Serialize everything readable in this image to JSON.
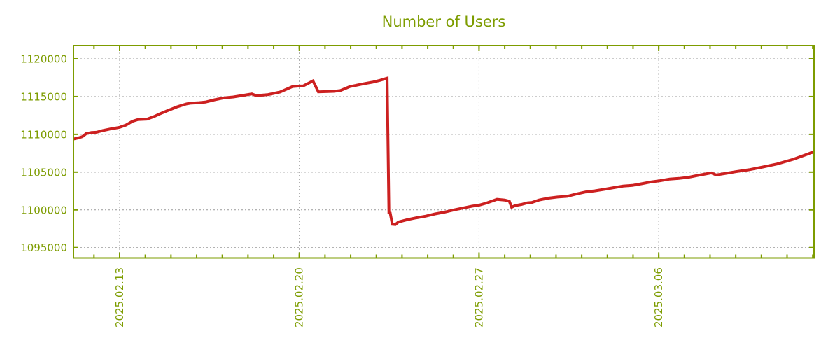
{
  "colors": {
    "accent": "#7d9c00",
    "series": "#cc2020",
    "grid": "#999999",
    "background": "#ffffff"
  },
  "chart_data": {
    "type": "line",
    "title": "Number of Users",
    "xlabel": "",
    "ylabel": "",
    "grid": true,
    "legend": "none",
    "x_unit": "days_since_2025.02.13",
    "xlim": [
      -1.8,
      27.05
    ],
    "ylim": [
      1093628,
      1121761
    ],
    "y_ticks": [
      {
        "value": 1120000,
        "label": "1120000"
      },
      {
        "value": 1115000,
        "label": "1115000"
      },
      {
        "value": 1110000,
        "label": "1110000"
      },
      {
        "value": 1105000,
        "label": "1105000"
      },
      {
        "value": 1100000,
        "label": "1100000"
      },
      {
        "value": 1095000,
        "label": "1095000"
      }
    ],
    "x_major_ticks": [
      {
        "day": 0,
        "label": "2025.02.13"
      },
      {
        "day": 7,
        "label": "2025.02.20"
      },
      {
        "day": 14,
        "label": "2025.02.27"
      },
      {
        "day": 21,
        "label": "2025.03.06"
      }
    ],
    "x_minor_ticks": {
      "first_day": -1,
      "last_day": 27,
      "step_days": 1
    },
    "series": [
      {
        "name": "Number of Users",
        "points": [
          [
            -1.8,
            1109380
          ],
          [
            -1.62,
            1109520
          ],
          [
            -1.45,
            1109700
          ],
          [
            -1.3,
            1110100
          ],
          [
            -1.1,
            1110240
          ],
          [
            -0.9,
            1110280
          ],
          [
            -0.66,
            1110500
          ],
          [
            -0.35,
            1110720
          ],
          [
            0.0,
            1110930
          ],
          [
            0.25,
            1111240
          ],
          [
            0.5,
            1111730
          ],
          [
            0.7,
            1111950
          ],
          [
            1.06,
            1112010
          ],
          [
            1.34,
            1112360
          ],
          [
            1.55,
            1112700
          ],
          [
            1.84,
            1113100
          ],
          [
            2.24,
            1113650
          ],
          [
            2.6,
            1114030
          ],
          [
            2.75,
            1114120
          ],
          [
            3.1,
            1114200
          ],
          [
            3.34,
            1114270
          ],
          [
            3.7,
            1114580
          ],
          [
            4.06,
            1114830
          ],
          [
            4.43,
            1114950
          ],
          [
            4.79,
            1115140
          ],
          [
            5.15,
            1115350
          ],
          [
            5.32,
            1115120
          ],
          [
            5.79,
            1115260
          ],
          [
            6.25,
            1115600
          ],
          [
            6.74,
            1116330
          ],
          [
            7.0,
            1116390
          ],
          [
            7.15,
            1116400
          ],
          [
            7.53,
            1117070
          ],
          [
            7.74,
            1115620
          ],
          [
            8.34,
            1115690
          ],
          [
            8.6,
            1115800
          ],
          [
            8.97,
            1116320
          ],
          [
            9.52,
            1116700
          ],
          [
            9.85,
            1116900
          ],
          [
            10.15,
            1117150
          ],
          [
            10.42,
            1117430
          ],
          [
            10.49,
            1099650
          ],
          [
            10.54,
            1099600
          ],
          [
            10.62,
            1098100
          ],
          [
            10.74,
            1098060
          ],
          [
            10.86,
            1098390
          ],
          [
            11.2,
            1098700
          ],
          [
            11.56,
            1098950
          ],
          [
            11.93,
            1099170
          ],
          [
            12.29,
            1099470
          ],
          [
            12.65,
            1099690
          ],
          [
            13.02,
            1100000
          ],
          [
            13.38,
            1100250
          ],
          [
            13.74,
            1100500
          ],
          [
            14.0,
            1100620
          ],
          [
            14.29,
            1100900
          ],
          [
            14.7,
            1101400
          ],
          [
            15.0,
            1101300
          ],
          [
            15.18,
            1101150
          ],
          [
            15.27,
            1100350
          ],
          [
            15.4,
            1100560
          ],
          [
            15.65,
            1100720
          ],
          [
            15.88,
            1100930
          ],
          [
            16.06,
            1100990
          ],
          [
            16.34,
            1101300
          ],
          [
            16.7,
            1101550
          ],
          [
            17.06,
            1101700
          ],
          [
            17.43,
            1101790
          ],
          [
            17.79,
            1102100
          ],
          [
            18.16,
            1102380
          ],
          [
            18.52,
            1102530
          ],
          [
            18.88,
            1102720
          ],
          [
            19.25,
            1102940
          ],
          [
            19.61,
            1103150
          ],
          [
            19.97,
            1103240
          ],
          [
            20.34,
            1103460
          ],
          [
            20.7,
            1103700
          ],
          [
            21.05,
            1103860
          ],
          [
            21.43,
            1104080
          ],
          [
            21.79,
            1104170
          ],
          [
            22.16,
            1104320
          ],
          [
            22.52,
            1104570
          ],
          [
            22.87,
            1104790
          ],
          [
            23.05,
            1104900
          ],
          [
            23.24,
            1104630
          ],
          [
            23.65,
            1104850
          ],
          [
            24.0,
            1105060
          ],
          [
            24.52,
            1105320
          ],
          [
            25.06,
            1105680
          ],
          [
            25.61,
            1106080
          ],
          [
            26.24,
            1106700
          ],
          [
            26.75,
            1107320
          ],
          [
            26.93,
            1107560
          ],
          [
            27.05,
            1107630
          ]
        ]
      }
    ]
  }
}
